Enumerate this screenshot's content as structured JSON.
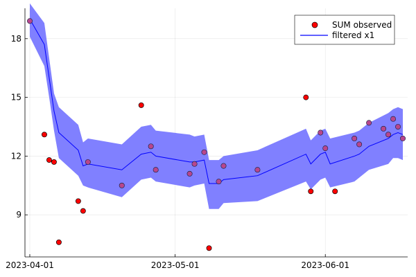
{
  "chart_data": {
    "type": "scatter",
    "title": "",
    "xlabel": "",
    "ylabel": "",
    "xlim": [
      "2023-03-31",
      "2023-06-18"
    ],
    "ylim": [
      6.85,
      19.55
    ],
    "grid": true,
    "legend_position": "top-right",
    "x_ticks": [
      {
        "date": "2023-04-01",
        "label": "2023-04-01"
      },
      {
        "date": "2023-05-01",
        "label": "2023-05-01"
      },
      {
        "date": "2023-06-01",
        "label": "2023-06-01"
      }
    ],
    "y_ticks": [
      9,
      12,
      15,
      18
    ],
    "series": [
      {
        "name": "SUM observed",
        "kind": "scatter",
        "color": "#ff0000",
        "points": [
          {
            "x": "2023-04-01",
            "y": 18.9
          },
          {
            "x": "2023-04-04",
            "y": 13.1
          },
          {
            "x": "2023-04-05",
            "y": 11.8
          },
          {
            "x": "2023-04-06",
            "y": 11.7
          },
          {
            "x": "2023-04-07",
            "y": 7.6
          },
          {
            "x": "2023-04-11",
            "y": 9.7
          },
          {
            "x": "2023-04-12",
            "y": 9.2
          },
          {
            "x": "2023-04-13",
            "y": 11.7
          },
          {
            "x": "2023-04-20",
            "y": 10.5
          },
          {
            "x": "2023-04-24",
            "y": 14.6
          },
          {
            "x": "2023-04-26",
            "y": 12.5
          },
          {
            "x": "2023-04-27",
            "y": 11.3
          },
          {
            "x": "2023-05-04",
            "y": 11.1
          },
          {
            "x": "2023-05-05",
            "y": 11.6
          },
          {
            "x": "2023-05-07",
            "y": 12.2
          },
          {
            "x": "2023-05-08",
            "y": 7.3
          },
          {
            "x": "2023-05-10",
            "y": 10.7
          },
          {
            "x": "2023-05-11",
            "y": 11.5
          },
          {
            "x": "2023-05-18",
            "y": 11.3
          },
          {
            "x": "2023-05-28",
            "y": 15.0
          },
          {
            "x": "2023-05-29",
            "y": 10.2
          },
          {
            "x": "2023-05-31",
            "y": 13.2
          },
          {
            "x": "2023-06-01",
            "y": 12.4
          },
          {
            "x": "2023-06-03",
            "y": 10.2
          },
          {
            "x": "2023-06-07",
            "y": 12.9
          },
          {
            "x": "2023-06-08",
            "y": 12.6
          },
          {
            "x": "2023-06-10",
            "y": 13.7
          },
          {
            "x": "2023-06-13",
            "y": 13.4
          },
          {
            "x": "2023-06-14",
            "y": 13.1
          },
          {
            "x": "2023-06-15",
            "y": 13.9
          },
          {
            "x": "2023-06-16",
            "y": 13.5
          },
          {
            "x": "2023-06-17",
            "y": 12.9
          }
        ]
      },
      {
        "name": "filtered x1",
        "kind": "line",
        "color": "#0000ff",
        "band_color": "#8080ff",
        "points": [
          {
            "x": "2023-04-01",
            "y": 19.0,
            "lo": 18.1,
            "hi": 19.8
          },
          {
            "x": "2023-04-04",
            "y": 17.7,
            "lo": 16.6,
            "hi": 18.8
          },
          {
            "x": "2023-04-05",
            "y": 16.0,
            "lo": 15.0,
            "hi": 17.0
          },
          {
            "x": "2023-04-06",
            "y": 14.3,
            "lo": 13.3,
            "hi": 15.2
          },
          {
            "x": "2023-04-07",
            "y": 13.2,
            "lo": 11.9,
            "hi": 14.5
          },
          {
            "x": "2023-04-11",
            "y": 12.3,
            "lo": 11.0,
            "hi": 13.6
          },
          {
            "x": "2023-04-12",
            "y": 11.5,
            "lo": 10.5,
            "hi": 12.7
          },
          {
            "x": "2023-04-13",
            "y": 11.6,
            "lo": 10.4,
            "hi": 12.9
          },
          {
            "x": "2023-04-20",
            "y": 11.3,
            "lo": 9.9,
            "hi": 12.6
          },
          {
            "x": "2023-04-24",
            "y": 12.1,
            "lo": 10.8,
            "hi": 13.5
          },
          {
            "x": "2023-04-26",
            "y": 12.2,
            "lo": 10.9,
            "hi": 13.6
          },
          {
            "x": "2023-04-27",
            "y": 12.0,
            "lo": 10.7,
            "hi": 13.3
          },
          {
            "x": "2023-05-04",
            "y": 11.7,
            "lo": 10.4,
            "hi": 13.1
          },
          {
            "x": "2023-05-05",
            "y": 11.7,
            "lo": 10.5,
            "hi": 13.0
          },
          {
            "x": "2023-05-07",
            "y": 11.8,
            "lo": 10.6,
            "hi": 13.1
          },
          {
            "x": "2023-05-08",
            "y": 10.6,
            "lo": 9.3,
            "hi": 11.8
          },
          {
            "x": "2023-05-10",
            "y": 10.6,
            "lo": 9.3,
            "hi": 11.8
          },
          {
            "x": "2023-05-11",
            "y": 10.8,
            "lo": 9.6,
            "hi": 12.0
          },
          {
            "x": "2023-05-18",
            "y": 11.0,
            "lo": 9.7,
            "hi": 12.3
          },
          {
            "x": "2023-05-28",
            "y": 12.1,
            "lo": 10.7,
            "hi": 13.4
          },
          {
            "x": "2023-05-29",
            "y": 11.6,
            "lo": 10.3,
            "hi": 12.8
          },
          {
            "x": "2023-05-31",
            "y": 12.1,
            "lo": 10.8,
            "hi": 13.3
          },
          {
            "x": "2023-06-01",
            "y": 12.2,
            "lo": 10.9,
            "hi": 13.4
          },
          {
            "x": "2023-06-02",
            "y": 11.6,
            "lo": 10.4,
            "hi": 12.9
          },
          {
            "x": "2023-06-07",
            "y": 12.0,
            "lo": 10.7,
            "hi": 13.2
          },
          {
            "x": "2023-06-08",
            "y": 12.1,
            "lo": 10.9,
            "hi": 13.3
          },
          {
            "x": "2023-06-10",
            "y": 12.5,
            "lo": 11.3,
            "hi": 13.7
          },
          {
            "x": "2023-06-14",
            "y": 12.9,
            "lo": 11.6,
            "hi": 14.2
          },
          {
            "x": "2023-06-15",
            "y": 13.1,
            "lo": 11.9,
            "hi": 14.4
          },
          {
            "x": "2023-06-16",
            "y": 13.2,
            "lo": 11.9,
            "hi": 14.5
          },
          {
            "x": "2023-06-17",
            "y": 13.1,
            "lo": 11.8,
            "hi": 14.4
          }
        ]
      }
    ]
  }
}
